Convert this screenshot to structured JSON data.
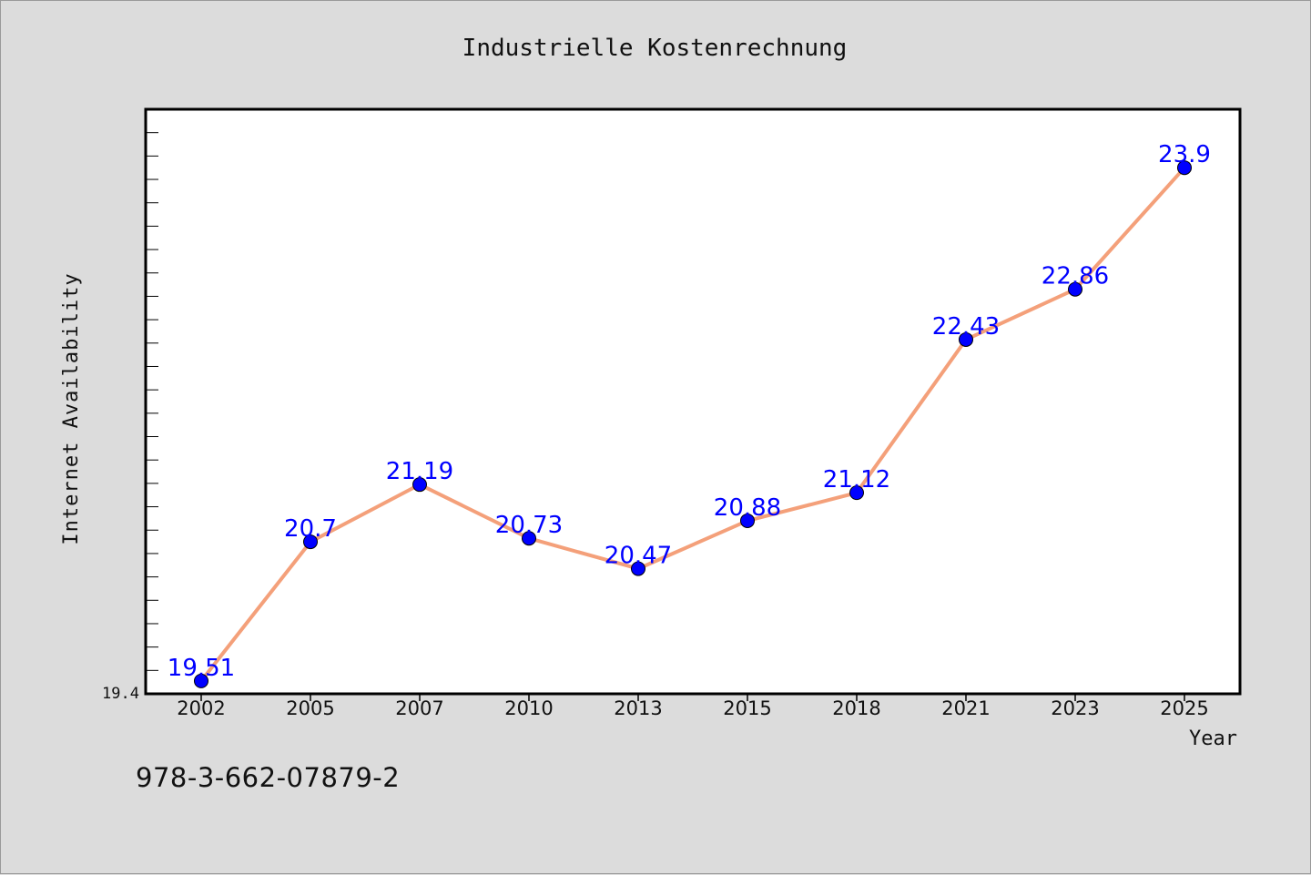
{
  "chart_data": {
    "type": "line",
    "title": "Industrielle Kostenrechnung",
    "xlabel": "Year",
    "ylabel": "Internet Availability",
    "categories": [
      "2002",
      "2005",
      "2007",
      "2010",
      "2013",
      "2015",
      "2018",
      "2021",
      "2023",
      "2025"
    ],
    "series": [
      {
        "values": [
          19.51,
          20.7,
          21.19,
          20.73,
          20.47,
          20.88,
          21.12,
          22.43,
          22.86,
          23.9
        ],
        "data_labels": [
          "19.51",
          "20.7",
          "21.19",
          "20.73",
          "20.47",
          "20.88",
          "21.12",
          "22.43",
          "22.86",
          "23.9"
        ],
        "line_color": "#f4a07a",
        "marker_color": "#0000ff",
        "label_color": "#0000ff"
      }
    ],
    "y_tick_label": "19.4",
    "ylim": [
      19.4,
      24.4
    ],
    "grid": false,
    "legend": "none"
  },
  "footer": {
    "isbn": "978-3-662-07879-2"
  },
  "colors": {
    "background": "#dcdcdc",
    "plot_background": "#ffffff",
    "axis": "#000000"
  }
}
